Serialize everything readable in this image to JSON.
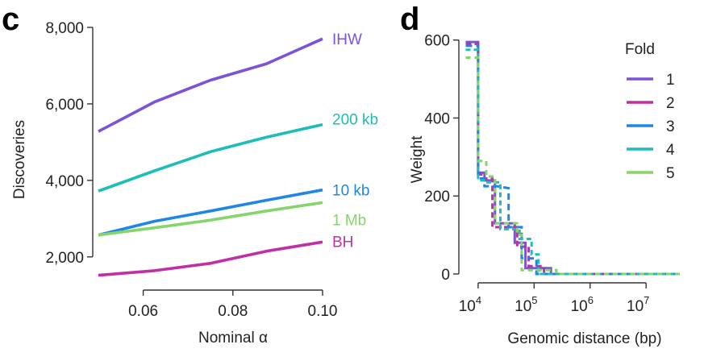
{
  "chart_data": [
    {
      "panel": "c",
      "type": "line",
      "xlabel": "Nominal α",
      "ylabel": "Discoveries",
      "xlim": [
        0.05,
        0.1
      ],
      "ylim": [
        1300,
        8000
      ],
      "xticks": [
        0.06,
        0.08,
        0.1
      ],
      "xtick_labels": [
        "0.06",
        "0.08",
        "0.10"
      ],
      "yticks": [
        2000,
        4000,
        6000,
        8000
      ],
      "ytick_labels": [
        "2,000",
        "4,000",
        "6,000",
        "8,000"
      ],
      "grid": false,
      "legend": "direct labels at line ends",
      "series": [
        {
          "name": "IHW",
          "color": "#7b52d8",
          "x": [
            0.05,
            0.0625,
            0.075,
            0.0875,
            0.1
          ],
          "y": [
            5280,
            6050,
            6620,
            7050,
            7700
          ]
        },
        {
          "name": "200 kb",
          "color": "#1dbdb8",
          "x": [
            0.05,
            0.0625,
            0.075,
            0.0875,
            0.1
          ],
          "y": [
            3720,
            4250,
            4750,
            5130,
            5460
          ]
        },
        {
          "name": "10 kb",
          "color": "#1f86e6",
          "x": [
            0.05,
            0.0625,
            0.075,
            0.0875,
            0.1
          ],
          "y": [
            2570,
            2930,
            3200,
            3480,
            3750
          ]
        },
        {
          "name": "1 Mb",
          "color": "#86d46c",
          "x": [
            0.05,
            0.0625,
            0.075,
            0.0875,
            0.1
          ],
          "y": [
            2570,
            2760,
            2960,
            3200,
            3420
          ]
        },
        {
          "name": "BH",
          "color": "#c12fa6",
          "x": [
            0.05,
            0.0625,
            0.075,
            0.0875,
            0.1
          ],
          "y": [
            1520,
            1640,
            1830,
            2150,
            2390
          ]
        }
      ]
    },
    {
      "panel": "d",
      "type": "line",
      "xlabel": "Genomic distance (bp)",
      "ylabel": "Weight",
      "xscale": "log",
      "xlim": [
        5000,
        40000000
      ],
      "ylim": [
        0,
        620
      ],
      "xticks": [
        10000,
        100000,
        1000000,
        10000000
      ],
      "xtick_labels": [
        "10^4",
        "10^5",
        "10^6",
        "10^7"
      ],
      "yticks": [
        0,
        200,
        400,
        600
      ],
      "ytick_labels": [
        "0",
        "200",
        "400",
        "600"
      ],
      "grid": false,
      "legend_title": "Fold",
      "legend": "right",
      "series": [
        {
          "name": "1",
          "color": "#7b52d8",
          "x": [
            6000,
            9000,
            10000,
            10001,
            13000,
            13001,
            20000,
            20001,
            45000,
            45001,
            70000,
            70001,
            200000,
            200001,
            40000000
          ],
          "y": [
            595,
            595,
            595,
            260,
            260,
            240,
            240,
            130,
            130,
            80,
            80,
            15,
            15,
            0,
            0
          ]
        },
        {
          "name": "2",
          "color": "#c12fa6",
          "x": [
            6000,
            9000,
            10000,
            10001,
            12000,
            12001,
            18000,
            18001,
            50000,
            50001,
            80000,
            80001,
            150000,
            150001,
            40000000
          ],
          "y": [
            590,
            590,
            590,
            255,
            255,
            245,
            245,
            120,
            120,
            70,
            70,
            20,
            20,
            0,
            0
          ]
        },
        {
          "name": "3",
          "color": "#1f86e6",
          "x": [
            6000,
            9000,
            10000,
            10001,
            13000,
            13001,
            22000,
            22001,
            35000,
            35001,
            60000,
            60001,
            110000,
            110001,
            40000000
          ],
          "y": [
            585,
            585,
            585,
            245,
            245,
            225,
            225,
            225,
            220,
            120,
            120,
            40,
            40,
            0,
            0
          ]
        },
        {
          "name": "4",
          "color": "#1dbdb8",
          "x": [
            6000,
            9000,
            10000,
            10001,
            14000,
            14001,
            25000,
            25001,
            55000,
            55001,
            90000,
            90001,
            120000,
            120001,
            40000000
          ],
          "y": [
            575,
            575,
            575,
            240,
            240,
            235,
            235,
            115,
            115,
            90,
            90,
            50,
            50,
            0,
            0
          ]
        },
        {
          "name": "5",
          "color": "#86d46c",
          "x": [
            6000,
            9000,
            10000,
            10001,
            14000,
            14001,
            20000,
            20001,
            50000,
            50001,
            60000,
            60001,
            250000,
            250001,
            40000000
          ],
          "y": [
            555,
            555,
            555,
            290,
            290,
            250,
            250,
            130,
            130,
            100,
            100,
            10,
            10,
            0,
            0
          ]
        }
      ]
    }
  ]
}
